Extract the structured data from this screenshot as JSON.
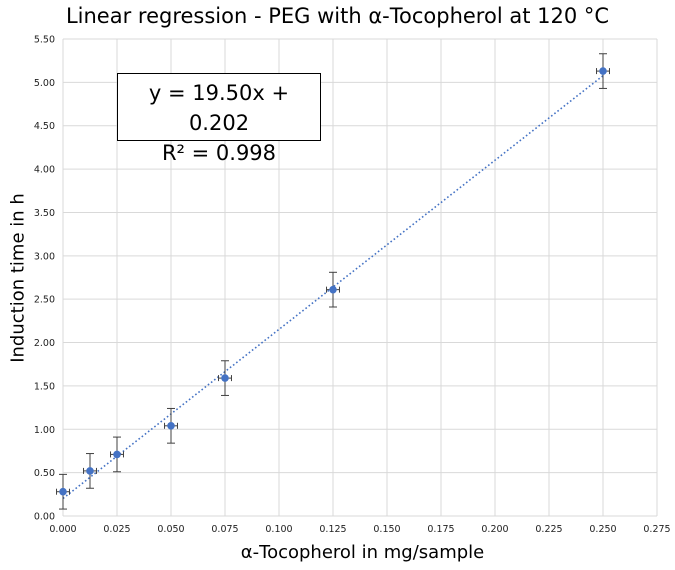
{
  "chart_data": {
    "type": "scatter",
    "title": "Linear regression - PEG with α-Tocopherol at 120 °C",
    "xlabel": "α-Tocopherol in mg/sample",
    "ylabel": "Induction time in h",
    "xlim": [
      0,
      0.275
    ],
    "ylim": [
      0,
      5.5
    ],
    "xticks": [
      "0.000",
      "0.025",
      "0.050",
      "0.075",
      "0.100",
      "0.125",
      "0.150",
      "0.175",
      "0.200",
      "0.225",
      "0.250",
      "0.275"
    ],
    "yticks": [
      "0.00",
      "0.50",
      "1.00",
      "1.50",
      "2.00",
      "2.50",
      "3.00",
      "3.50",
      "4.00",
      "4.50",
      "5.00",
      "5.50"
    ],
    "grid": true,
    "series": [
      {
        "name": "PEG with α-Tocopherol",
        "color": "#4472C4",
        "x": [
          0,
          0.0125,
          0.025,
          0.05,
          0.075,
          0.125,
          0.25
        ],
        "y": [
          0.28,
          0.52,
          0.71,
          1.04,
          1.59,
          2.61,
          5.13
        ],
        "y_error": [
          0.2,
          0.2,
          0.2,
          0.2,
          0.2,
          0.2,
          0.2
        ],
        "x_error": [
          0.003,
          0.003,
          0.003,
          0.003,
          0.003,
          0.003,
          0.003
        ]
      }
    ],
    "trendline": {
      "type": "linear",
      "slope": 19.5,
      "intercept": 0.202,
      "r2": 0.998,
      "color": "#4472C4",
      "style": "dotted"
    },
    "annotations": {
      "equation": "y = 19.50x + 0.202",
      "r_squared": "R² = 0.998"
    }
  }
}
